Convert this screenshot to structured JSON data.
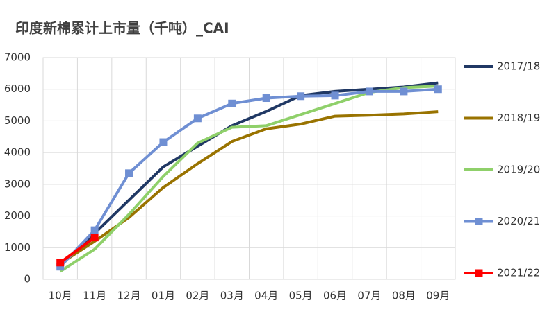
{
  "chart_data": {
    "type": "line",
    "title": "印度新棉累计上市量（千吨）_CAI",
    "categories": [
      "10月",
      "11月",
      "12月",
      "01月",
      "02月",
      "03月",
      "04月",
      "05月",
      "06月",
      "07月",
      "08月",
      "09月"
    ],
    "series": [
      {
        "name": "2017/18",
        "color": "#203864",
        "values": [
          450,
          1450,
          2500,
          3550,
          4200,
          4850,
          5300,
          5800,
          5930,
          6000,
          6070,
          6200
        ]
      },
      {
        "name": "2018/19",
        "color": "#997300",
        "values": [
          500,
          1200,
          1950,
          2900,
          3650,
          4350,
          4750,
          4900,
          5150,
          5180,
          5220,
          5290
        ]
      },
      {
        "name": "2019/20",
        "color": "#8fd06a",
        "values": [
          250,
          950,
          2050,
          3250,
          4300,
          4800,
          4850,
          5200,
          5550,
          5900,
          6050,
          6100
        ]
      },
      {
        "name": "2020/21",
        "color": "#6f8fd3",
        "marker": "square",
        "values": [
          400,
          1550,
          3350,
          4330,
          5080,
          5550,
          5720,
          5780,
          5800,
          5930,
          5930,
          6000
        ]
      },
      {
        "name": "2021/22",
        "color": "#ff0000",
        "marker": "square",
        "values": [
          530,
          1320,
          null,
          null,
          null,
          null,
          null,
          null,
          null,
          null,
          null,
          null
        ]
      }
    ],
    "ylim": [
      0,
      7000
    ],
    "yticks": [
      0,
      1000,
      2000,
      3000,
      4000,
      5000,
      6000,
      7000
    ],
    "grid": true,
    "legend": "right"
  }
}
